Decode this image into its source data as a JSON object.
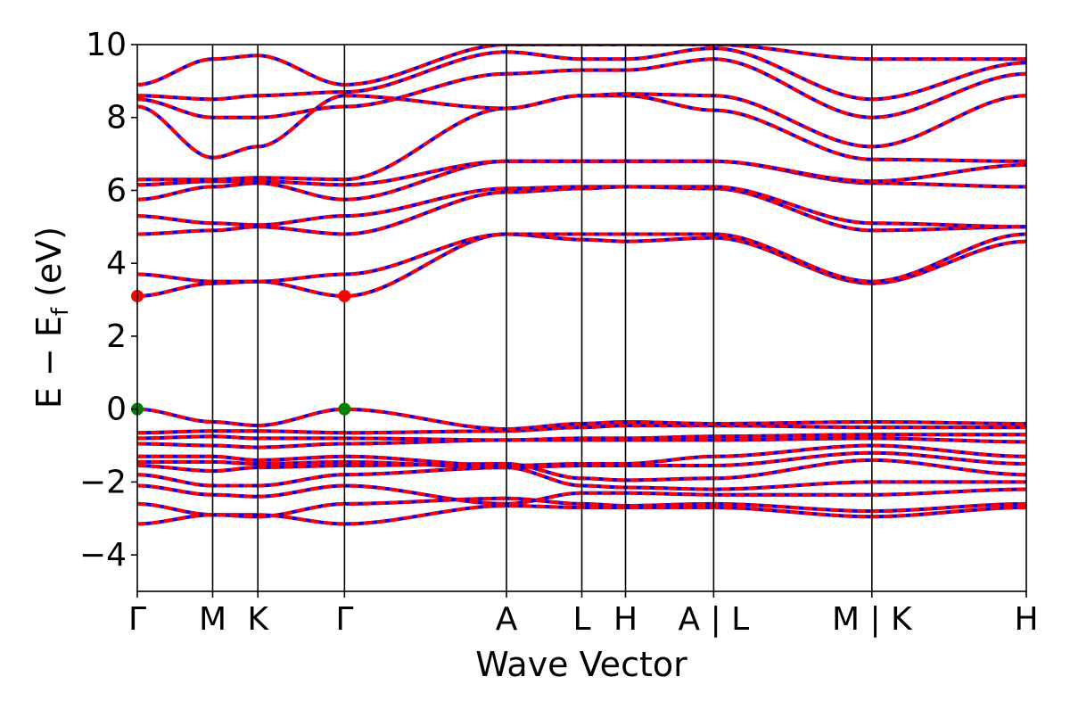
{
  "chart_data": {
    "type": "line",
    "title": "",
    "xlabel": "Wave Vector",
    "ylabel": "E − E",
    "ylabel_subscript": "f",
    "ylabel_unit": "(eV)",
    "ylim": [
      -5,
      10
    ],
    "yticks": [
      -4,
      -2,
      0,
      2,
      4,
      6,
      8,
      10
    ],
    "ytick_labels": [
      "−4",
      "−2",
      "0",
      "2",
      "4",
      "6",
      "8",
      "10"
    ],
    "xlim": [
      0,
      11.8
    ],
    "kpath": [
      {
        "label": "Γ",
        "x": 0.0
      },
      {
        "label": "M",
        "x": 1.0
      },
      {
        "label": "K",
        "x": 1.6
      },
      {
        "label": "Γ",
        "x": 2.75
      },
      {
        "label": "A",
        "x": 4.9
      },
      {
        "label": "L",
        "x": 5.9
      },
      {
        "label": "H",
        "x": 6.48
      },
      {
        "label": "A | L",
        "x": 7.65
      },
      {
        "label": "M | K",
        "x": 9.75
      },
      {
        "label": "H",
        "x": 11.8
      }
    ],
    "grid": false,
    "legend": "none",
    "series_colors": {
      "primary": "#ff0000",
      "secondary": "#0000ff"
    },
    "marker_colors": {
      "cbm": "#ff0000",
      "vbm": "#008000"
    },
    "markers": [
      {
        "kind": "cbm",
        "x": 0.0,
        "y": 3.1
      },
      {
        "kind": "cbm",
        "x": 2.75,
        "y": 3.1
      },
      {
        "kind": "vbm",
        "x": 0.0,
        "y": 0.0
      },
      {
        "kind": "vbm",
        "x": 2.75,
        "y": 0.0
      }
    ],
    "bands": [
      [
        -3.15,
        -2.9,
        -2.9,
        -3.15,
        -2.65,
        -2.7,
        -2.7,
        -2.7,
        -2.95,
        -2.7
      ],
      [
        -2.6,
        -2.9,
        -2.95,
        -2.6,
        -2.45,
        -2.6,
        -2.65,
        -2.6,
        -2.8,
        -2.6
      ],
      [
        -2.1,
        -2.35,
        -2.4,
        -2.1,
        -2.6,
        -2.3,
        -2.3,
        -2.35,
        -2.35,
        -2.2
      ],
      [
        -1.8,
        -2.1,
        -2.1,
        -1.8,
        -1.6,
        -2.1,
        -2.15,
        -2.2,
        -2.0,
        -2.0
      ],
      [
        -1.55,
        -1.7,
        -1.6,
        -1.55,
        -1.5,
        -1.9,
        -1.95,
        -1.9,
        -1.4,
        -1.8
      ],
      [
        -1.45,
        -1.45,
        -1.5,
        -1.45,
        -1.6,
        -1.55,
        -1.55,
        -1.55,
        -1.2,
        -1.5
      ],
      [
        -1.3,
        -1.3,
        -1.4,
        -1.3,
        -1.55,
        -1.5,
        -1.5,
        -1.3,
        -1.0,
        -1.3
      ],
      [
        -0.95,
        -1.0,
        -1.05,
        -0.95,
        -0.85,
        -0.85,
        -0.85,
        -0.85,
        -0.8,
        -0.9
      ],
      [
        -0.8,
        -0.75,
        -0.8,
        -0.8,
        -0.85,
        -0.8,
        -0.8,
        -0.75,
        -0.7,
        -0.7
      ],
      [
        -0.65,
        -0.6,
        -0.6,
        -0.65,
        -0.6,
        -0.5,
        -0.45,
        -0.45,
        -0.5,
        -0.5
      ],
      [
        0.0,
        -0.35,
        -0.45,
        0.0,
        -0.55,
        -0.4,
        -0.35,
        -0.4,
        -0.35,
        -0.4
      ],
      [
        3.1,
        3.45,
        3.5,
        3.1,
        4.8,
        4.65,
        4.6,
        4.7,
        3.45,
        4.6
      ],
      [
        3.7,
        3.5,
        3.5,
        3.7,
        4.8,
        4.8,
        4.8,
        4.8,
        3.5,
        4.8
      ],
      [
        4.8,
        4.9,
        5.0,
        4.8,
        5.95,
        6.05,
        6.1,
        6.05,
        4.9,
        5.0
      ],
      [
        5.3,
        5.1,
        5.05,
        5.3,
        6.05,
        6.1,
        6.1,
        6.1,
        5.1,
        5.0
      ],
      [
        5.75,
        6.1,
        6.2,
        5.75,
        6.8,
        6.8,
        6.8,
        6.8,
        6.2,
        6.1
      ],
      [
        6.15,
        6.25,
        6.25,
        6.15,
        6.8,
        6.8,
        6.8,
        6.8,
        6.25,
        6.7
      ],
      [
        6.3,
        6.3,
        6.35,
        6.3,
        8.25,
        8.6,
        8.6,
        8.2,
        6.85,
        6.8
      ],
      [
        8.3,
        6.9,
        7.2,
        8.6,
        8.25,
        8.6,
        8.65,
        8.6,
        7.2,
        8.6
      ],
      [
        8.5,
        8.0,
        8.0,
        8.3,
        9.2,
        9.3,
        9.3,
        9.6,
        8.0,
        9.2
      ],
      [
        8.6,
        8.5,
        8.6,
        8.7,
        9.8,
        9.6,
        9.6,
        9.9,
        8.5,
        9.5
      ],
      [
        8.9,
        9.6,
        9.7,
        8.9,
        10.0,
        10.0,
        10.0,
        10.0,
        9.6,
        9.6
      ]
    ]
  }
}
